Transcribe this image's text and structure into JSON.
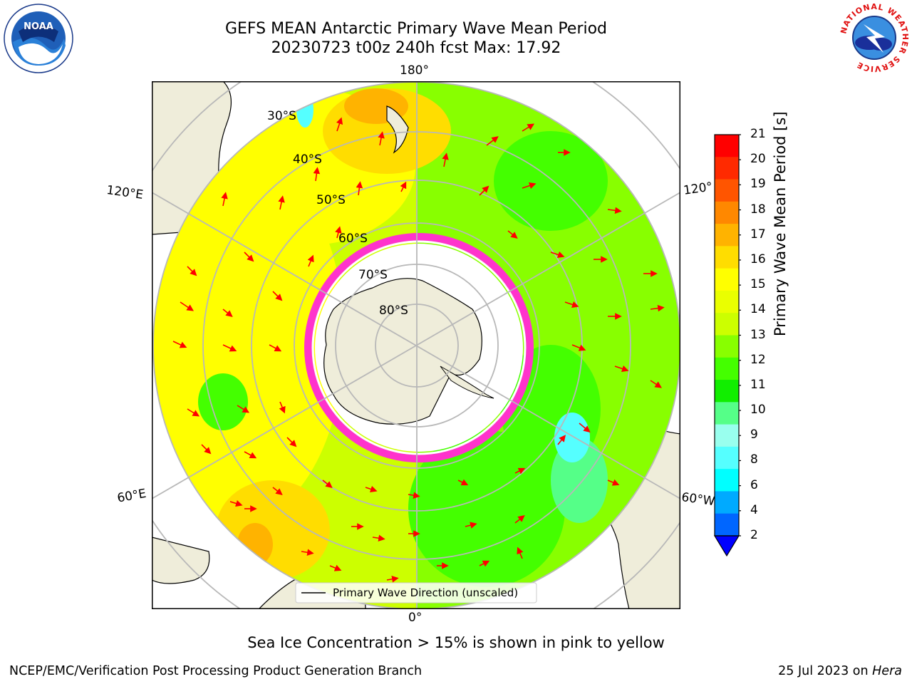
{
  "header": {
    "title_line1": "GEFS MEAN Antarctic Primary Wave Mean Period",
    "title_line2": "20230723 t00z 240h fcst   Max: 17.92"
  },
  "logos": {
    "left": {
      "icon": "noaa-logo",
      "text": "NOAA"
    },
    "right": {
      "icon": "national-weather-service-logo",
      "ring_text": "NATIONAL WEATHER SERVICE"
    }
  },
  "map": {
    "projection": "south-polar-stereographic",
    "longitude_labels": {
      "top": "180°",
      "bottom": "0°",
      "left_upper": "120°E",
      "left_lower": "60°E",
      "right_upper": "120°",
      "right_lower": "60°W"
    },
    "latitude_labels": [
      "30°S",
      "40°S",
      "50°S",
      "60°S",
      "70°S",
      "80°S"
    ],
    "legend_label": "Primary Wave Direction (unscaled)",
    "colors": {
      "land": "#efedda",
      "arrow": "#ff0000",
      "ice_edge": "#ff33cc",
      "grid": "#b8b8b8"
    }
  },
  "colorbar": {
    "label": "Primary Wave Mean Period [s]",
    "ticks": [
      "21",
      "20",
      "19",
      "18",
      "17",
      "16",
      "15",
      "14",
      "13",
      "12",
      "11",
      "10",
      "9",
      "8",
      "6",
      "4",
      "2"
    ],
    "colors_top_to_bottom": [
      "#ff0000",
      "#ff2a00",
      "#ff5500",
      "#ff8800",
      "#ffb300",
      "#ffdd00",
      "#ffff00",
      "#eaff00",
      "#ccff00",
      "#88ff00",
      "#44ff00",
      "#11ee00",
      "#55ff88",
      "#99ffee",
      "#55ffff",
      "#00ffff",
      "#00aaff",
      "#0066ff"
    ],
    "extend_color": "#0000ff"
  },
  "caption": "Sea Ice Concentration > 15% is shown in pink to yellow",
  "footer": {
    "left": "NCEP/EMC/Verification Post Processing Product Generation Branch",
    "right_date": "25 Jul 2023 on",
    "right_host": "Hera"
  }
}
